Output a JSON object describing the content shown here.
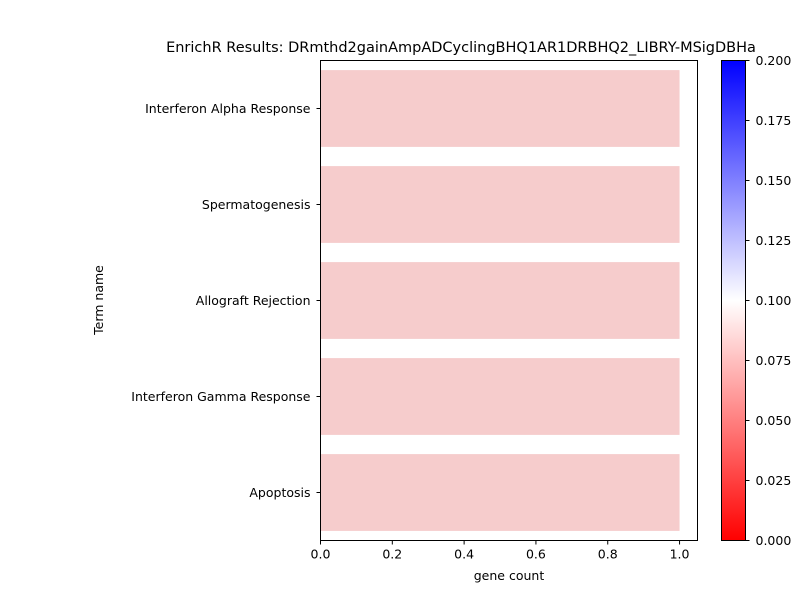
{
  "chart_data": {
    "type": "bar",
    "orientation": "horizontal",
    "title": "EnrichR Results: DRmthd2gainAmpADCyclingBHQ1AR1DRBHQ2_LIBRY-MSigDBHa",
    "xlabel": "gene count",
    "ylabel": "Term name",
    "categories": [
      "Interferon Alpha Response",
      "Spermatogenesis",
      "Allograft Rejection",
      "Interferon Gamma Response",
      "Apoptosis"
    ],
    "values": [
      1,
      1,
      1,
      1,
      1
    ],
    "bar_color": "#f6cccc",
    "xlim": [
      0.0,
      1.05
    ],
    "xticks": [
      "0.0",
      "0.2",
      "0.4",
      "0.6",
      "0.8",
      "1.0"
    ],
    "colorbar": {
      "range": [
        0.0,
        0.2
      ],
      "colors": [
        "#ff0000",
        "#ffffff",
        "#0000ff"
      ],
      "ticks": [
        "0.000",
        "0.025",
        "0.050",
        "0.075",
        "0.100",
        "0.125",
        "0.150",
        "0.175",
        "0.200"
      ]
    }
  }
}
